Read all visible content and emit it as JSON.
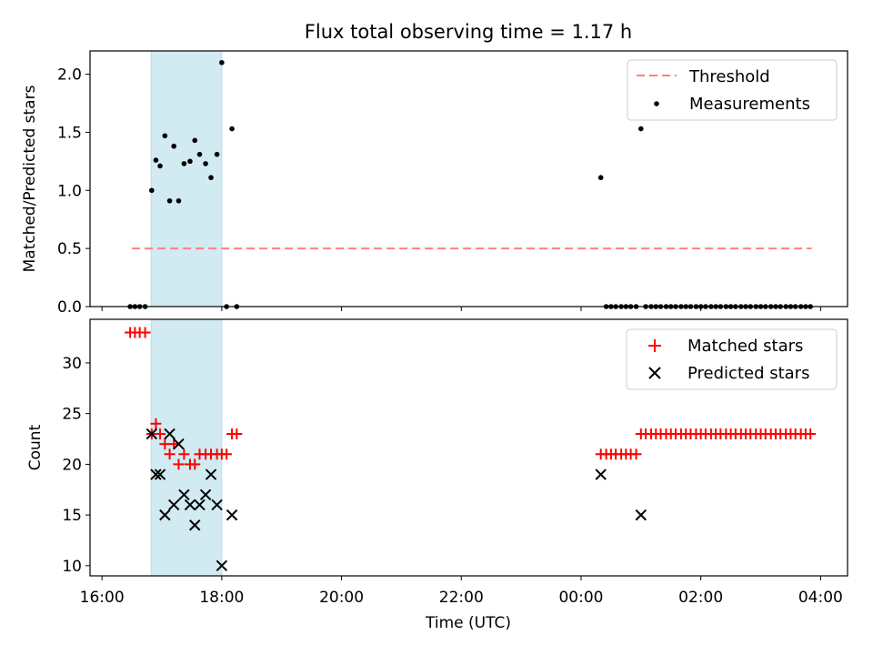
{
  "chart_data": [
    {
      "type": "scatter",
      "title": "Flux total observing time = 1.17 h",
      "xlabel": "",
      "ylabel": "Matched/Predicted stars",
      "ylim": [
        0,
        2.2
      ],
      "yticks": [
        "0.0",
        "0.5",
        "1.0",
        "1.5",
        "2.0"
      ],
      "xlim_hours": [
        15.8,
        28.45
      ],
      "shaded_interval_hours": [
        16.82,
        18.0
      ],
      "threshold": {
        "name": "Threshold",
        "y": 0.5,
        "x_range_hours": [
          16.5,
          27.85
        ],
        "color": "#ff8080"
      },
      "legend_position": "upper right",
      "series": [
        {
          "name": "Measurements",
          "color": "#000000",
          "points": [
            [
              16.47,
              0
            ],
            [
              16.55,
              0
            ],
            [
              16.63,
              0
            ],
            [
              16.72,
              0
            ],
            [
              16.83,
              1.0
            ],
            [
              16.9,
              1.26
            ],
            [
              16.97,
              1.21
            ],
            [
              17.05,
              1.47
            ],
            [
              17.13,
              0.91
            ],
            [
              17.2,
              1.38
            ],
            [
              17.28,
              0.91
            ],
            [
              17.37,
              1.23
            ],
            [
              17.47,
              1.25
            ],
            [
              17.55,
              1.43
            ],
            [
              17.63,
              1.31
            ],
            [
              17.73,
              1.23
            ],
            [
              17.82,
              1.11
            ],
            [
              17.92,
              1.31
            ],
            [
              18.0,
              2.1
            ],
            [
              18.08,
              0
            ],
            [
              18.17,
              1.53
            ],
            [
              18.25,
              0
            ],
            [
              24.33,
              1.11
            ],
            [
              24.42,
              0
            ],
            [
              24.5,
              0
            ],
            [
              24.58,
              0
            ],
            [
              24.67,
              0
            ],
            [
              24.75,
              0
            ],
            [
              24.83,
              0
            ],
            [
              24.92,
              0
            ],
            [
              25.0,
              1.53
            ],
            [
              25.08,
              0
            ],
            [
              25.17,
              0
            ],
            [
              25.25,
              0
            ],
            [
              25.33,
              0
            ],
            [
              25.42,
              0
            ],
            [
              25.5,
              0
            ],
            [
              25.58,
              0
            ],
            [
              25.67,
              0
            ],
            [
              25.75,
              0
            ],
            [
              25.83,
              0
            ],
            [
              25.92,
              0
            ],
            [
              26.0,
              0
            ],
            [
              26.08,
              0
            ],
            [
              26.17,
              0
            ],
            [
              26.25,
              0
            ],
            [
              26.33,
              0
            ],
            [
              26.42,
              0
            ],
            [
              26.5,
              0
            ],
            [
              26.58,
              0
            ],
            [
              26.67,
              0
            ],
            [
              26.75,
              0
            ],
            [
              26.83,
              0
            ],
            [
              26.92,
              0
            ],
            [
              27.0,
              0
            ],
            [
              27.08,
              0
            ],
            [
              27.17,
              0
            ],
            [
              27.25,
              0
            ],
            [
              27.33,
              0
            ],
            [
              27.42,
              0
            ],
            [
              27.5,
              0
            ],
            [
              27.58,
              0
            ],
            [
              27.67,
              0
            ],
            [
              27.75,
              0
            ],
            [
              27.83,
              0
            ]
          ]
        }
      ]
    },
    {
      "type": "scatter",
      "title": "",
      "xlabel": "Time (UTC)",
      "ylabel": "Count",
      "ylim": [
        9,
        34.3
      ],
      "yticks": [
        "10",
        "15",
        "20",
        "25",
        "30"
      ],
      "xticks": [
        {
          "h": 16,
          "label": "16:00"
        },
        {
          "h": 18,
          "label": "18:00"
        },
        {
          "h": 20,
          "label": "20:00"
        },
        {
          "h": 22,
          "label": "22:00"
        },
        {
          "h": 24,
          "label": "00:00"
        },
        {
          "h": 26,
          "label": "02:00"
        },
        {
          "h": 28,
          "label": "04:00"
        }
      ],
      "xlim_hours": [
        15.8,
        28.45
      ],
      "shaded_interval_hours": [
        16.82,
        18.0
      ],
      "legend_position": "upper right",
      "series": [
        {
          "name": "Matched stars",
          "marker": "plus",
          "color": "#ff0000",
          "points": [
            [
              16.47,
              33
            ],
            [
              16.55,
              33
            ],
            [
              16.63,
              33
            ],
            [
              16.72,
              33
            ],
            [
              16.83,
              23
            ],
            [
              16.9,
              24
            ],
            [
              16.97,
              23
            ],
            [
              17.05,
              22
            ],
            [
              17.13,
              21
            ],
            [
              17.2,
              22
            ],
            [
              17.28,
              20
            ],
            [
              17.37,
              21
            ],
            [
              17.47,
              20
            ],
            [
              17.55,
              20
            ],
            [
              17.63,
              21
            ],
            [
              17.73,
              21
            ],
            [
              17.82,
              21
            ],
            [
              17.92,
              21
            ],
            [
              18.0,
              21
            ],
            [
              18.08,
              21
            ],
            [
              18.17,
              23
            ],
            [
              18.25,
              23
            ],
            [
              24.33,
              21
            ],
            [
              24.42,
              21
            ],
            [
              24.5,
              21
            ],
            [
              24.58,
              21
            ],
            [
              24.67,
              21
            ],
            [
              24.75,
              21
            ],
            [
              24.83,
              21
            ],
            [
              24.92,
              21
            ],
            [
              25.0,
              23
            ],
            [
              25.08,
              23
            ],
            [
              25.17,
              23
            ],
            [
              25.25,
              23
            ],
            [
              25.33,
              23
            ],
            [
              25.42,
              23
            ],
            [
              25.5,
              23
            ],
            [
              25.58,
              23
            ],
            [
              25.67,
              23
            ],
            [
              25.75,
              23
            ],
            [
              25.83,
              23
            ],
            [
              25.92,
              23
            ],
            [
              26.0,
              23
            ],
            [
              26.08,
              23
            ],
            [
              26.17,
              23
            ],
            [
              26.25,
              23
            ],
            [
              26.33,
              23
            ],
            [
              26.42,
              23
            ],
            [
              26.5,
              23
            ],
            [
              26.58,
              23
            ],
            [
              26.67,
              23
            ],
            [
              26.75,
              23
            ],
            [
              26.83,
              23
            ],
            [
              26.92,
              23
            ],
            [
              27.0,
              23
            ],
            [
              27.08,
              23
            ],
            [
              27.17,
              23
            ],
            [
              27.25,
              23
            ],
            [
              27.33,
              23
            ],
            [
              27.42,
              23
            ],
            [
              27.5,
              23
            ],
            [
              27.58,
              23
            ],
            [
              27.67,
              23
            ],
            [
              27.75,
              23
            ],
            [
              27.83,
              23
            ]
          ]
        },
        {
          "name": "Predicted stars",
          "marker": "x",
          "color": "#000000",
          "points": [
            [
              16.83,
              23
            ],
            [
              16.9,
              19
            ],
            [
              16.97,
              19
            ],
            [
              17.05,
              15
            ],
            [
              17.13,
              23
            ],
            [
              17.2,
              16
            ],
            [
              17.28,
              22
            ],
            [
              17.37,
              17
            ],
            [
              17.47,
              16
            ],
            [
              17.55,
              14
            ],
            [
              17.63,
              16
            ],
            [
              17.73,
              17
            ],
            [
              17.82,
              19
            ],
            [
              17.92,
              16
            ],
            [
              18.0,
              10
            ],
            [
              18.17,
              15
            ],
            [
              24.33,
              19
            ],
            [
              25.0,
              15
            ]
          ]
        }
      ]
    }
  ]
}
